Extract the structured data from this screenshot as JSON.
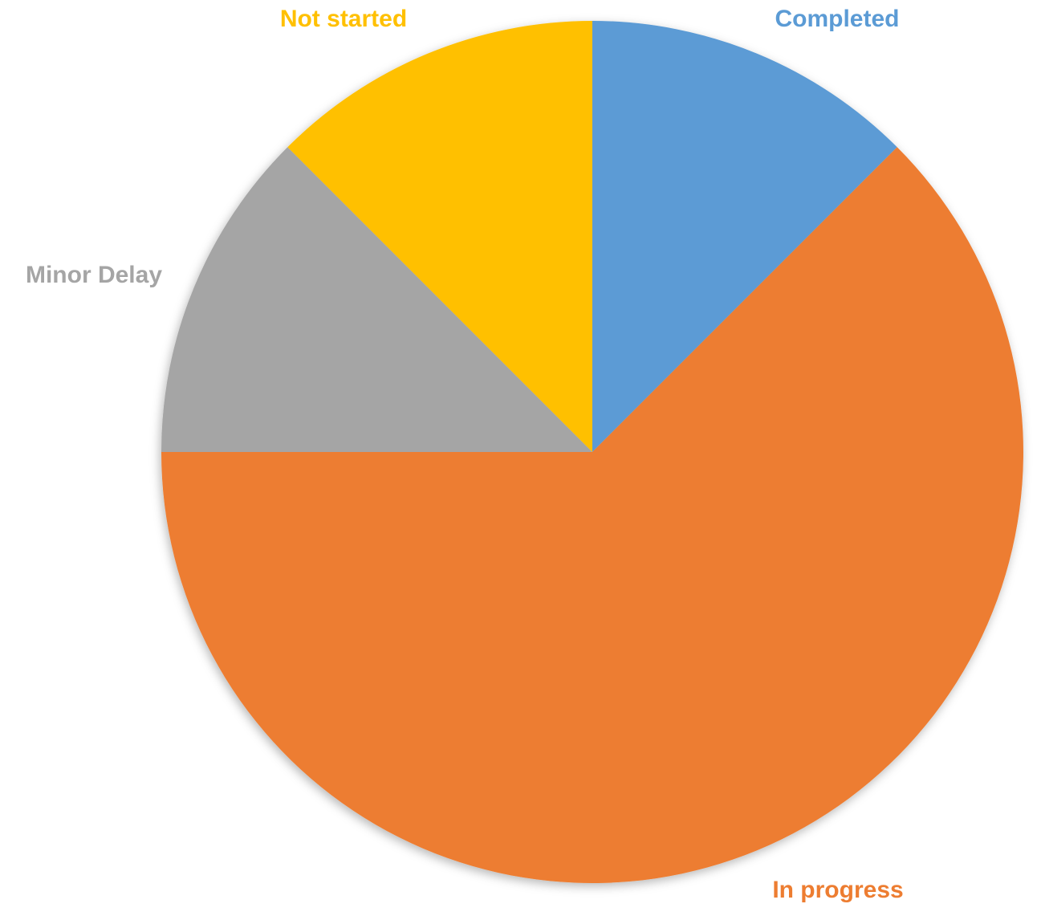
{
  "chart_data": {
    "type": "pie",
    "slices": [
      {
        "label": "Completed",
        "value": 12.5,
        "color": "#5B9BD5"
      },
      {
        "label": "In progress",
        "value": 62.5,
        "color": "#ED7D31"
      },
      {
        "label": "Minor Delay",
        "value": 12.5,
        "color": "#A5A5A5"
      },
      {
        "label": "Not started",
        "value": 12.5,
        "color": "#FFC000"
      }
    ],
    "start_angle_deg": 0,
    "direction": "clockwise",
    "legend": "none",
    "data_labels": "category-name-outside"
  }
}
